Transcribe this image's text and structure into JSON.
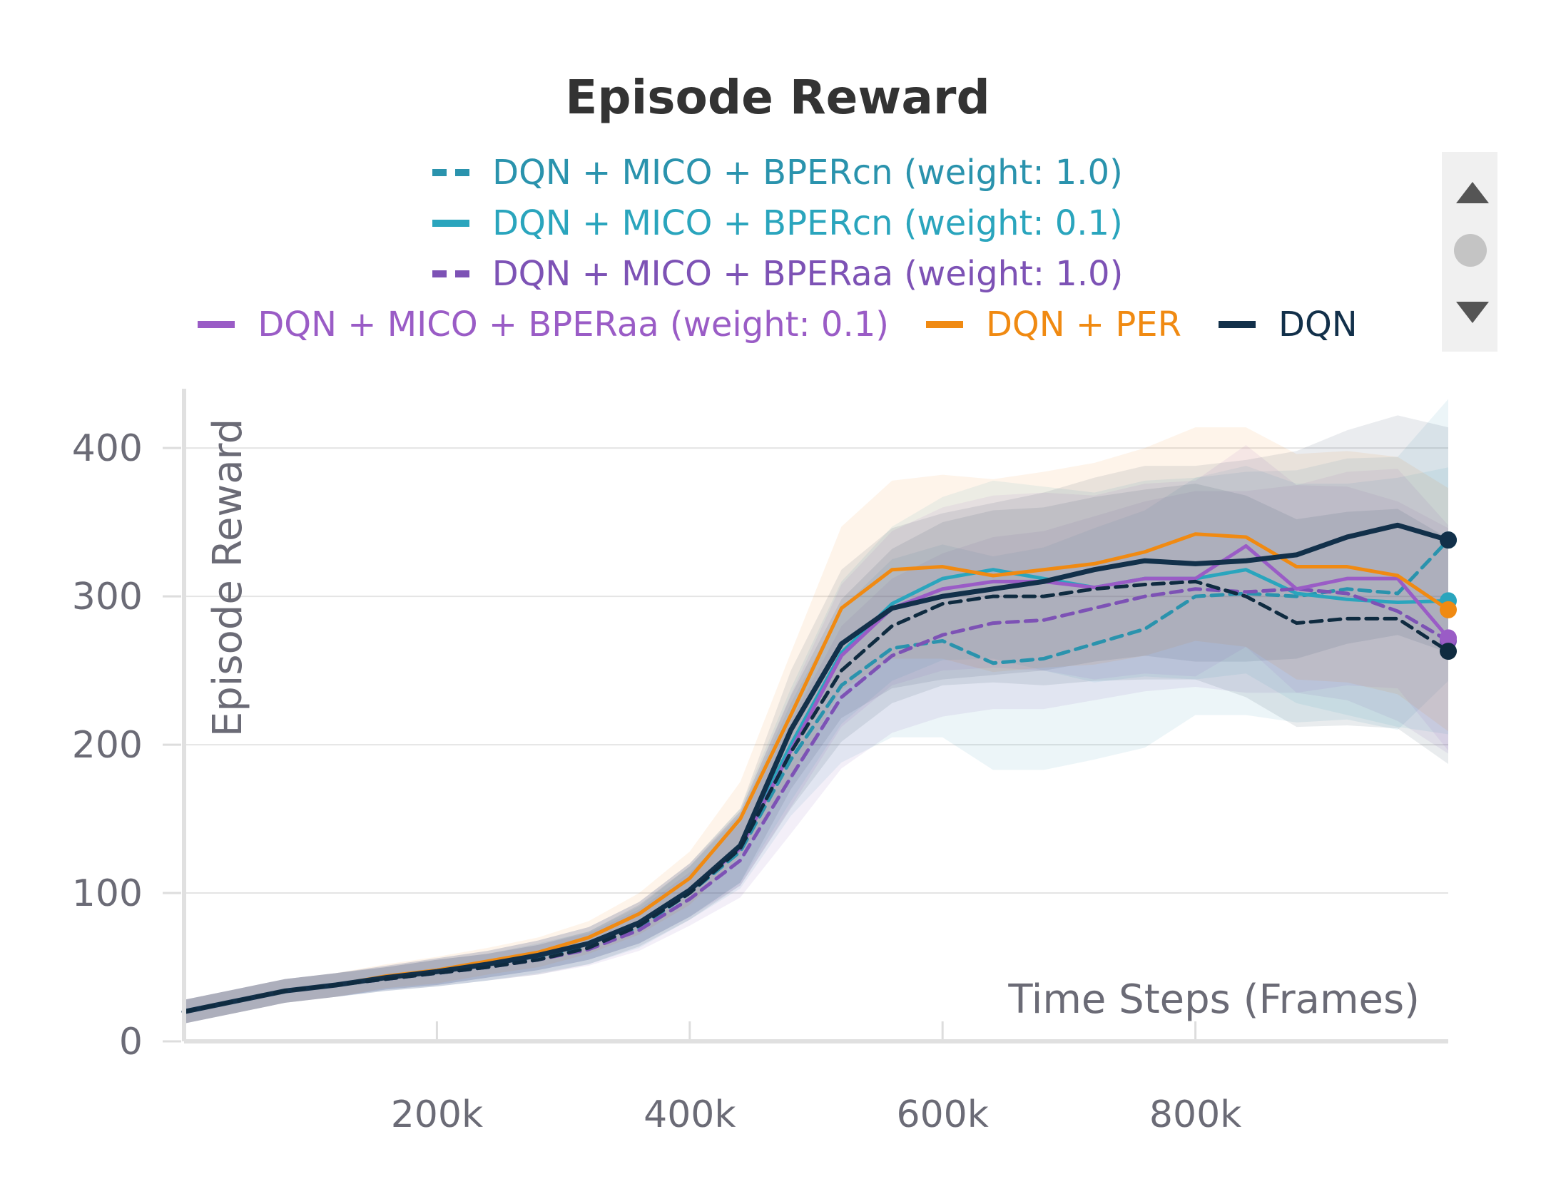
{
  "chart_data": {
    "type": "line",
    "title": "Episode Reward",
    "xlabel": "Time Steps (Frames)",
    "ylabel": "Episode Reward",
    "xlim": [
      0,
      1000000
    ],
    "ylim": [
      0,
      440
    ],
    "x_ticks": [
      200000,
      400000,
      600000,
      800000
    ],
    "x_tick_labels": [
      "200k",
      "400k",
      "600k",
      "800k"
    ],
    "y_ticks": [
      0,
      100,
      200,
      300,
      400
    ],
    "y_tick_labels": [
      "0",
      "100",
      "200",
      "300",
      "400"
    ],
    "grid": true,
    "legend_position": "top",
    "x": [
      0,
      40000,
      80000,
      120000,
      160000,
      200000,
      240000,
      280000,
      320000,
      360000,
      400000,
      440000,
      480000,
      520000,
      560000,
      600000,
      640000,
      680000,
      720000,
      760000,
      800000,
      840000,
      880000,
      920000,
      960000,
      1000000
    ],
    "series": [
      {
        "name": "DQN + MICO + BPERcn (weight: 1.0)",
        "color": "#2a93ad",
        "dashed": true,
        "values": [
          20,
          27,
          34,
          38,
          42,
          46,
          50,
          56,
          63,
          77,
          100,
          128,
          190,
          240,
          265,
          270,
          255,
          258,
          268,
          278,
          300,
          302,
          300,
          305,
          302,
          338
        ],
        "band": [
          8,
          8,
          8,
          8,
          8,
          9,
          9,
          10,
          11,
          14,
          18,
          25,
          38,
          52,
          60,
          65,
          72,
          75,
          78,
          80,
          80,
          82,
          85,
          88,
          92,
          95
        ]
      },
      {
        "name": "DQN + MICO + BPERcn (weight: 0.1)",
        "color": "#2aa5bd",
        "dashed": false,
        "values": [
          20,
          27,
          34,
          38,
          43,
          47,
          52,
          58,
          66,
          80,
          102,
          132,
          200,
          262,
          295,
          312,
          318,
          312,
          306,
          312,
          312,
          318,
          302,
          298,
          296,
          297
        ],
        "band": [
          8,
          8,
          8,
          8,
          8,
          9,
          9,
          10,
          11,
          14,
          18,
          25,
          38,
          48,
          52,
          55,
          60,
          62,
          64,
          66,
          68,
          70,
          74,
          78,
          84,
          90
        ]
      },
      {
        "name": "DQN + MICO + BPERaa (weight: 1.0)",
        "color": "#7d52b5",
        "dashed": true,
        "values": [
          20,
          27,
          34,
          38,
          42,
          46,
          50,
          55,
          62,
          75,
          96,
          122,
          178,
          232,
          260,
          274,
          282,
          284,
          292,
          300,
          305,
          303,
          305,
          302,
          290,
          270
        ],
        "band": [
          8,
          8,
          8,
          8,
          8,
          9,
          9,
          10,
          11,
          14,
          18,
          25,
          38,
          48,
          52,
          55,
          58,
          60,
          62,
          64,
          66,
          68,
          70,
          72,
          74,
          76
        ]
      },
      {
        "name": "DQN + MICO + BPERaa (weight: 0.1)",
        "color": "#9a5cc6",
        "dashed": false,
        "values": [
          20,
          27,
          34,
          38,
          43,
          47,
          52,
          58,
          66,
          80,
          102,
          130,
          196,
          260,
          292,
          305,
          310,
          310,
          306,
          312,
          312,
          334,
          305,
          312,
          312,
          272
        ],
        "band": [
          8,
          8,
          8,
          8,
          8,
          9,
          9,
          10,
          11,
          14,
          18,
          25,
          38,
          48,
          52,
          55,
          58,
          60,
          62,
          64,
          66,
          68,
          70,
          72,
          74,
          76
        ]
      },
      {
        "name": "DQN + PER",
        "color": "#f08a12",
        "dashed": false,
        "values": [
          20,
          27,
          34,
          38,
          44,
          48,
          54,
          60,
          70,
          86,
          110,
          150,
          220,
          292,
          318,
          320,
          314,
          318,
          322,
          330,
          342,
          340,
          320,
          320,
          314,
          291
        ],
        "band": [
          8,
          8,
          8,
          8,
          8,
          9,
          9,
          10,
          11,
          14,
          18,
          25,
          42,
          55,
          60,
          62,
          65,
          66,
          68,
          70,
          72,
          74,
          76,
          78,
          80,
          82
        ]
      },
      {
        "name": "DQN",
        "color": "#12304a",
        "dashed": false,
        "values": [
          20,
          27,
          34,
          38,
          43,
          47,
          52,
          58,
          66,
          80,
          102,
          132,
          210,
          268,
          292,
          300,
          305,
          310,
          318,
          324,
          322,
          324,
          328,
          340,
          348,
          338
        ],
        "band": [
          8,
          8,
          8,
          8,
          8,
          9,
          9,
          10,
          11,
          14,
          18,
          25,
          40,
          50,
          54,
          56,
          58,
          60,
          62,
          64,
          66,
          68,
          70,
          72,
          74,
          76
        ]
      },
      {
        "name": "",
        "color": "#0f2b40",
        "dashed": true,
        "values": [
          20,
          27,
          34,
          38,
          42,
          46,
          50,
          55,
          63,
          78,
          100,
          130,
          195,
          250,
          280,
          295,
          300,
          300,
          305,
          308,
          310,
          300,
          282,
          285,
          285,
          263
        ],
        "band": [
          8,
          8,
          8,
          8,
          8,
          9,
          9,
          10,
          11,
          14,
          18,
          25,
          38,
          48,
          52,
          55,
          58,
          60,
          62,
          64,
          66,
          68,
          70,
          72,
          74,
          76
        ]
      }
    ],
    "legend": {
      "row1": {
        "label": "DQN + MICO + BPERcn (weight: 1.0)",
        "color": "#2a93ad",
        "dashed": true
      },
      "row2": {
        "label": "DQN + MICO + BPERcn (weight: 0.1)",
        "color": "#2aa5bd",
        "dashed": false
      },
      "row3": {
        "label": "DQN + MICO + BPERaa (weight: 1.0)",
        "color": "#7d52b5",
        "dashed": true
      },
      "row4a": {
        "label": "DQN + MICO + BPERaa (weight: 0.1)",
        "color": "#9a5cc6",
        "dashed": false
      },
      "row4b": {
        "label": "DQN + PER",
        "color": "#f08a12",
        "dashed": false
      },
      "row4c": {
        "label": "DQN",
        "color": "#12304a",
        "dashed": false
      }
    }
  }
}
